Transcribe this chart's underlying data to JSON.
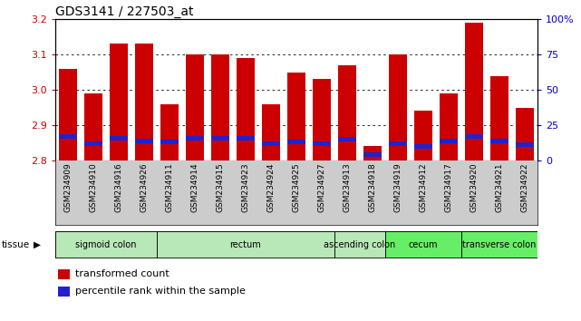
{
  "title": "GDS3141 / 227503_at",
  "samples": [
    "GSM234909",
    "GSM234910",
    "GSM234916",
    "GSM234926",
    "GSM234911",
    "GSM234914",
    "GSM234915",
    "GSM234923",
    "GSM234924",
    "GSM234925",
    "GSM234927",
    "GSM234913",
    "GSM234918",
    "GSM234919",
    "GSM234912",
    "GSM234917",
    "GSM234920",
    "GSM234921",
    "GSM234922"
  ],
  "red_values": [
    3.06,
    2.99,
    3.13,
    3.13,
    2.96,
    3.1,
    3.1,
    3.09,
    2.96,
    3.05,
    3.03,
    3.07,
    2.84,
    3.1,
    2.94,
    2.99,
    3.19,
    3.04,
    2.95
  ],
  "blue_values": [
    17,
    12,
    16,
    14,
    13,
    16,
    16,
    16,
    12,
    13,
    12,
    15,
    4,
    12,
    10,
    14,
    17,
    14,
    11
  ],
  "ymin": 2.8,
  "ymax": 3.2,
  "yticks": [
    2.8,
    2.9,
    3.0,
    3.1,
    3.2
  ],
  "right_ytick_vals": [
    0,
    25,
    50,
    75,
    100
  ],
  "right_yticklabels": [
    "0",
    "25",
    "50",
    "75",
    "100%"
  ],
  "tissue_groups": [
    {
      "label": "sigmoid colon",
      "start": 0,
      "end": 3,
      "color": "#b8e8b8"
    },
    {
      "label": "rectum",
      "start": 4,
      "end": 10,
      "color": "#b8e8b8"
    },
    {
      "label": "ascending colon",
      "start": 11,
      "end": 12,
      "color": "#b8e8b8"
    },
    {
      "label": "cecum",
      "start": 13,
      "end": 15,
      "color": "#66ee66"
    },
    {
      "label": "transverse colon",
      "start": 16,
      "end": 18,
      "color": "#66ee66"
    }
  ],
  "bar_color": "#cc0000",
  "blue_color": "#2222cc",
  "bg_color": "#ffffff",
  "xticklabel_bg": "#cccccc",
  "left_tick_color": "#cc0000",
  "right_tick_color": "#0000cc",
  "grid_color": "#000000",
  "title_fontsize": 10,
  "bar_width": 0.7
}
